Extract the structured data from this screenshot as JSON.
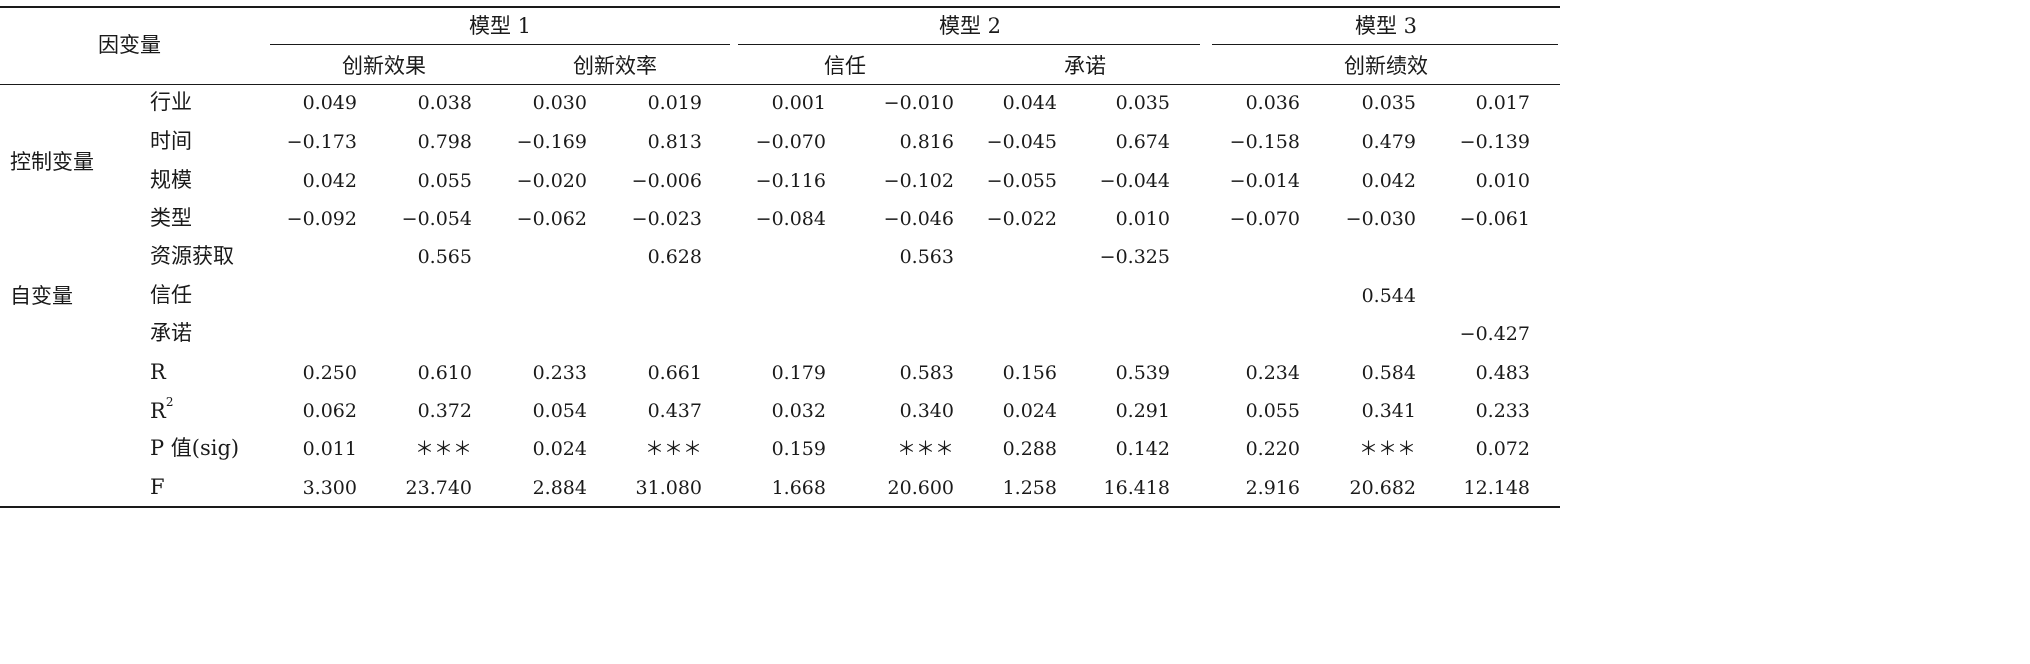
{
  "header": {
    "dependent_var": "因变量",
    "models": [
      "模型 1",
      "模型 2",
      "模型 3"
    ],
    "subheads": [
      "创新效果",
      "创新效率",
      "信任",
      "承诺",
      "创新绩效"
    ]
  },
  "groups": [
    "控制变量",
    "自变量"
  ],
  "rows": [
    {
      "label": "行业",
      "values": [
        "0.049",
        "0.038",
        "0.030",
        "0.019",
        "0.001",
        "−0.010",
        "0.044",
        "0.035",
        "0.036",
        "0.035",
        "0.017"
      ]
    },
    {
      "label": "时间",
      "values": [
        "−0.173",
        "0.798",
        "−0.169",
        "0.813",
        "−0.070",
        "0.816",
        "−0.045",
        "0.674",
        "−0.158",
        "0.479",
        "−0.139"
      ]
    },
    {
      "label": "规模",
      "values": [
        "0.042",
        "0.055",
        "−0.020",
        "−0.006",
        "−0.116",
        "−0.102",
        "−0.055",
        "−0.044",
        "−0.014",
        "0.042",
        "0.010"
      ]
    },
    {
      "label": "类型",
      "values": [
        "−0.092",
        "−0.054",
        "−0.062",
        "−0.023",
        "−0.084",
        "−0.046",
        "−0.022",
        "0.010",
        "−0.070",
        "−0.030",
        "−0.061"
      ]
    },
    {
      "label": "资源获取",
      "values": [
        "",
        "0.565",
        "",
        "0.628",
        "",
        "0.563",
        "",
        "−0.325",
        "",
        "",
        ""
      ]
    },
    {
      "label": "信任",
      "values": [
        "",
        "",
        "",
        "",
        "",
        "",
        "",
        "",
        "",
        "0.544",
        ""
      ]
    },
    {
      "label": "承诺",
      "values": [
        "",
        "",
        "",
        "",
        "",
        "",
        "",
        "",
        "",
        "",
        "−0.427"
      ]
    },
    {
      "label": "R",
      "values": [
        "0.250",
        "0.610",
        "0.233",
        "0.661",
        "0.179",
        "0.583",
        "0.156",
        "0.539",
        "0.234",
        "0.584",
        "0.483"
      ]
    },
    {
      "label": "R",
      "sup": "2",
      "values": [
        "0.062",
        "0.372",
        "0.054",
        "0.437",
        "0.032",
        "0.340",
        "0.024",
        "0.291",
        "0.055",
        "0.341",
        "0.233"
      ]
    },
    {
      "label": "P 值(sig)",
      "values": [
        "0.011",
        "＊＊＊",
        "0.024",
        "＊＊＊",
        "0.159",
        "＊＊＊",
        "0.288",
        "0.142",
        "0.220",
        "＊＊＊",
        "0.072"
      ]
    },
    {
      "label": "F",
      "values": [
        "3.300",
        "23.740",
        "2.884",
        "31.080",
        "1.668",
        "20.600",
        "1.258",
        "16.418",
        "2.916",
        "20.682",
        "12.148"
      ]
    }
  ]
}
